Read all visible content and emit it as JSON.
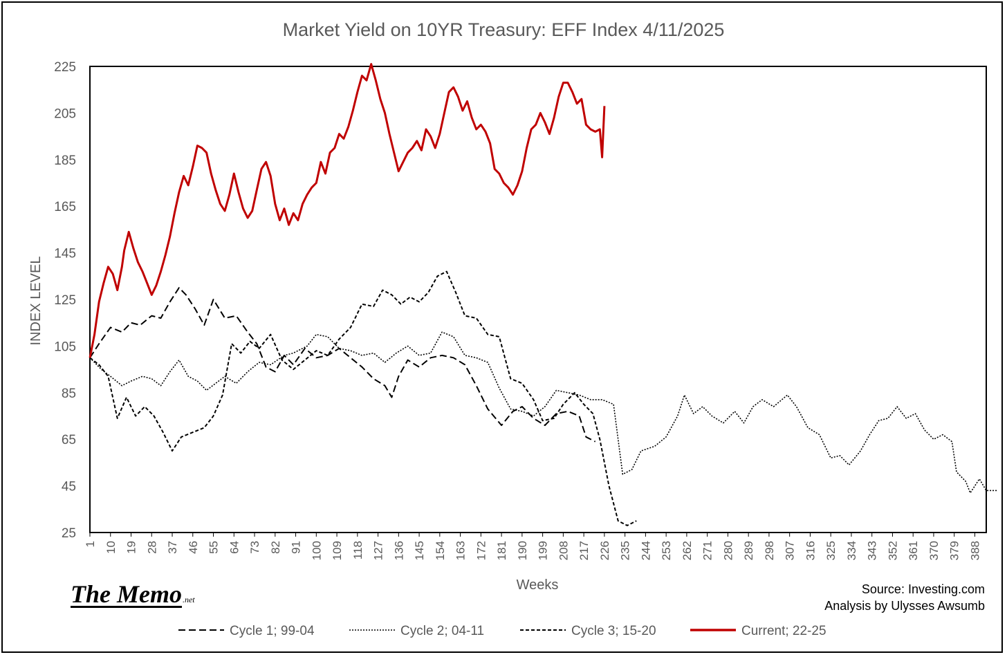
{
  "logo": {
    "main": "The Memo",
    "suffix": ".net"
  },
  "source": {
    "line1": "Source: Investing.com",
    "line2": "Analysis by Ulysses Awsumb"
  },
  "chart_data": {
    "type": "line",
    "title": "Market Yield on 10YR Treasury: EFF Index 4/11/2025",
    "xlabel": "Weeks",
    "ylabel": "INDEX LEVEL",
    "xlim": [
      1,
      393
    ],
    "ylim": [
      25,
      225
    ],
    "y_ticks": [
      25,
      45,
      65,
      85,
      105,
      125,
      145,
      165,
      185,
      205,
      225
    ],
    "x_ticks": [
      1,
      10,
      19,
      28,
      37,
      46,
      55,
      64,
      73,
      82,
      91,
      100,
      109,
      118,
      127,
      136,
      145,
      154,
      163,
      172,
      181,
      190,
      199,
      208,
      217,
      226,
      235,
      244,
      253,
      262,
      271,
      280,
      289,
      298,
      307,
      316,
      325,
      334,
      343,
      352,
      361,
      370,
      379,
      388
    ],
    "grid": false,
    "legend_position": "bottom",
    "series": [
      {
        "name": "Cycle 1; 99-04",
        "color": "#000000",
        "style": "dashed",
        "points": [
          [
            1,
            100
          ],
          [
            5,
            106
          ],
          [
            10,
            113
          ],
          [
            15,
            111
          ],
          [
            19,
            115
          ],
          [
            23,
            114
          ],
          [
            28,
            118
          ],
          [
            32,
            117
          ],
          [
            36,
            124
          ],
          [
            40,
            130
          ],
          [
            43,
            127
          ],
          [
            47,
            121
          ],
          [
            51,
            114
          ],
          [
            55,
            125
          ],
          [
            60,
            117
          ],
          [
            65,
            118
          ],
          [
            70,
            111
          ],
          [
            74,
            106
          ],
          [
            78,
            96
          ],
          [
            82,
            94
          ],
          [
            86,
            101
          ],
          [
            90,
            97
          ],
          [
            95,
            104
          ],
          [
            100,
            100
          ],
          [
            105,
            101
          ],
          [
            110,
            104
          ],
          [
            115,
            100
          ],
          [
            120,
            96
          ],
          [
            125,
            91
          ],
          [
            130,
            88
          ],
          [
            133,
            83
          ],
          [
            136,
            92
          ],
          [
            140,
            99
          ],
          [
            145,
            96
          ],
          [
            150,
            100
          ],
          [
            155,
            101
          ],
          [
            160,
            100
          ],
          [
            165,
            97
          ],
          [
            170,
            88
          ],
          [
            175,
            78
          ],
          [
            181,
            71
          ],
          [
            186,
            77
          ],
          [
            190,
            79
          ],
          [
            195,
            74
          ],
          [
            200,
            71
          ],
          [
            205,
            76
          ],
          [
            210,
            77
          ],
          [
            215,
            75
          ],
          [
            218,
            66
          ],
          [
            222,
            64
          ]
        ]
      },
      {
        "name": "Cycle 2; 04-11",
        "color": "#000000",
        "style": "dotted",
        "points": [
          [
            1,
            100
          ],
          [
            6,
            95
          ],
          [
            10,
            92
          ],
          [
            15,
            88
          ],
          [
            19,
            90
          ],
          [
            24,
            92
          ],
          [
            28,
            91
          ],
          [
            32,
            88
          ],
          [
            36,
            94
          ],
          [
            40,
            99
          ],
          [
            44,
            92
          ],
          [
            48,
            90
          ],
          [
            52,
            86
          ],
          [
            56,
            89
          ],
          [
            60,
            92
          ],
          [
            65,
            89
          ],
          [
            70,
            94
          ],
          [
            75,
            98
          ],
          [
            80,
            97
          ],
          [
            86,
            101
          ],
          [
            90,
            102
          ],
          [
            96,
            105
          ],
          [
            100,
            110
          ],
          [
            105,
            109
          ],
          [
            110,
            104
          ],
          [
            115,
            103
          ],
          [
            120,
            101
          ],
          [
            125,
            102
          ],
          [
            130,
            98
          ],
          [
            135,
            102
          ],
          [
            140,
            105
          ],
          [
            145,
            101
          ],
          [
            150,
            102
          ],
          [
            155,
            111
          ],
          [
            160,
            109
          ],
          [
            165,
            101
          ],
          [
            170,
            100
          ],
          [
            175,
            98
          ],
          [
            180,
            87
          ],
          [
            185,
            78
          ],
          [
            190,
            77
          ],
          [
            195,
            75
          ],
          [
            200,
            79
          ],
          [
            205,
            86
          ],
          [
            210,
            85
          ],
          [
            215,
            84
          ],
          [
            220,
            82
          ],
          [
            225,
            82
          ],
          [
            230,
            80
          ],
          [
            234,
            50
          ],
          [
            238,
            52
          ],
          [
            242,
            60
          ],
          [
            248,
            62
          ],
          [
            253,
            66
          ],
          [
            258,
            75
          ],
          [
            261,
            84
          ],
          [
            265,
            76
          ],
          [
            269,
            79
          ],
          [
            273,
            75
          ],
          [
            278,
            72
          ],
          [
            283,
            77
          ],
          [
            287,
            72
          ],
          [
            291,
            79
          ],
          [
            295,
            82
          ],
          [
            300,
            79
          ],
          [
            306,
            84
          ],
          [
            310,
            79
          ],
          [
            315,
            70
          ],
          [
            320,
            67
          ],
          [
            325,
            57
          ],
          [
            329,
            58
          ],
          [
            333,
            54
          ],
          [
            338,
            60
          ],
          [
            342,
            67
          ],
          [
            346,
            73
          ],
          [
            350,
            74
          ],
          [
            354,
            79
          ],
          [
            358,
            74
          ],
          [
            362,
            76
          ],
          [
            366,
            69
          ],
          [
            370,
            65
          ],
          [
            374,
            67
          ],
          [
            378,
            64
          ],
          [
            380,
            51
          ],
          [
            384,
            47
          ],
          [
            386,
            42
          ],
          [
            390,
            48
          ],
          [
            393,
            43
          ],
          [
            398,
            43
          ]
        ]
      },
      {
        "name": "Cycle 3; 15-20",
        "color": "#000000",
        "style": "dashed-fine",
        "points": [
          [
            1,
            100
          ],
          [
            5,
            97
          ],
          [
            9,
            92
          ],
          [
            13,
            74
          ],
          [
            17,
            83
          ],
          [
            21,
            75
          ],
          [
            25,
            79
          ],
          [
            29,
            75
          ],
          [
            33,
            68
          ],
          [
            37,
            60
          ],
          [
            41,
            66
          ],
          [
            46,
            68
          ],
          [
            51,
            70
          ],
          [
            55,
            75
          ],
          [
            59,
            84
          ],
          [
            63,
            106
          ],
          [
            67,
            102
          ],
          [
            71,
            107
          ],
          [
            75,
            104
          ],
          [
            80,
            110
          ],
          [
            85,
            99
          ],
          [
            90,
            95
          ],
          [
            95,
            99
          ],
          [
            100,
            103
          ],
          [
            105,
            101
          ],
          [
            110,
            108
          ],
          [
            115,
            113
          ],
          [
            120,
            123
          ],
          [
            125,
            122
          ],
          [
            129,
            129
          ],
          [
            133,
            127
          ],
          [
            137,
            123
          ],
          [
            141,
            126
          ],
          [
            145,
            124
          ],
          [
            149,
            128
          ],
          [
            153,
            135
          ],
          [
            157,
            137
          ],
          [
            161,
            128
          ],
          [
            165,
            118
          ],
          [
            170,
            117
          ],
          [
            175,
            110
          ],
          [
            180,
            109
          ],
          [
            185,
            91
          ],
          [
            190,
            89
          ],
          [
            195,
            82
          ],
          [
            199,
            73
          ],
          [
            204,
            74
          ],
          [
            208,
            80
          ],
          [
            213,
            85
          ],
          [
            217,
            80
          ],
          [
            221,
            76
          ],
          [
            224,
            65
          ],
          [
            228,
            45
          ],
          [
            232,
            30
          ],
          [
            236,
            28
          ],
          [
            240,
            30
          ]
        ]
      },
      {
        "name": "Current; 22-25",
        "color": "#c00000",
        "style": "solid",
        "points": [
          [
            1,
            100
          ],
          [
            3,
            110
          ],
          [
            5,
            124
          ],
          [
            7,
            132
          ],
          [
            9,
            139
          ],
          [
            11,
            136
          ],
          [
            13,
            129
          ],
          [
            15,
            139
          ],
          [
            16,
            146
          ],
          [
            18,
            154
          ],
          [
            20,
            147
          ],
          [
            22,
            141
          ],
          [
            24,
            137
          ],
          [
            26,
            132
          ],
          [
            28,
            127
          ],
          [
            30,
            131
          ],
          [
            32,
            137
          ],
          [
            34,
            144
          ],
          [
            36,
            152
          ],
          [
            38,
            162
          ],
          [
            40,
            171
          ],
          [
            42,
            178
          ],
          [
            44,
            174
          ],
          [
            46,
            182
          ],
          [
            48,
            191
          ],
          [
            50,
            190
          ],
          [
            52,
            188
          ],
          [
            54,
            179
          ],
          [
            56,
            172
          ],
          [
            58,
            166
          ],
          [
            60,
            163
          ],
          [
            62,
            170
          ],
          [
            64,
            179
          ],
          [
            66,
            171
          ],
          [
            68,
            164
          ],
          [
            70,
            160
          ],
          [
            72,
            163
          ],
          [
            74,
            172
          ],
          [
            76,
            181
          ],
          [
            78,
            184
          ],
          [
            80,
            178
          ],
          [
            82,
            166
          ],
          [
            84,
            159
          ],
          [
            86,
            164
          ],
          [
            88,
            157
          ],
          [
            90,
            162
          ],
          [
            92,
            159
          ],
          [
            94,
            166
          ],
          [
            96,
            170
          ],
          [
            98,
            173
          ],
          [
            100,
            175
          ],
          [
            102,
            184
          ],
          [
            104,
            179
          ],
          [
            106,
            188
          ],
          [
            108,
            190
          ],
          [
            110,
            196
          ],
          [
            112,
            194
          ],
          [
            114,
            199
          ],
          [
            116,
            206
          ],
          [
            118,
            214
          ],
          [
            120,
            221
          ],
          [
            122,
            219
          ],
          [
            124,
            226
          ],
          [
            126,
            219
          ],
          [
            128,
            211
          ],
          [
            130,
            205
          ],
          [
            132,
            196
          ],
          [
            134,
            188
          ],
          [
            136,
            180
          ],
          [
            138,
            184
          ],
          [
            140,
            188
          ],
          [
            142,
            190
          ],
          [
            144,
            193
          ],
          [
            146,
            189
          ],
          [
            148,
            198
          ],
          [
            150,
            195
          ],
          [
            152,
            190
          ],
          [
            154,
            196
          ],
          [
            156,
            205
          ],
          [
            158,
            214
          ],
          [
            160,
            216
          ],
          [
            162,
            212
          ],
          [
            164,
            206
          ],
          [
            166,
            210
          ],
          [
            168,
            203
          ],
          [
            170,
            198
          ],
          [
            172,
            200
          ],
          [
            174,
            197
          ],
          [
            176,
            192
          ],
          [
            178,
            181
          ],
          [
            180,
            179
          ],
          [
            182,
            175
          ],
          [
            184,
            173
          ],
          [
            186,
            170
          ],
          [
            188,
            174
          ],
          [
            190,
            180
          ],
          [
            192,
            190
          ],
          [
            194,
            198
          ],
          [
            196,
            200
          ],
          [
            198,
            205
          ],
          [
            200,
            201
          ],
          [
            202,
            196
          ],
          [
            204,
            203
          ],
          [
            206,
            212
          ],
          [
            208,
            218
          ],
          [
            210,
            218
          ],
          [
            212,
            214
          ],
          [
            214,
            209
          ],
          [
            216,
            211
          ],
          [
            218,
            200
          ],
          [
            220,
            198
          ],
          [
            222,
            197
          ],
          [
            224,
            198
          ],
          [
            225,
            186
          ],
          [
            226,
            208
          ]
        ]
      }
    ]
  }
}
